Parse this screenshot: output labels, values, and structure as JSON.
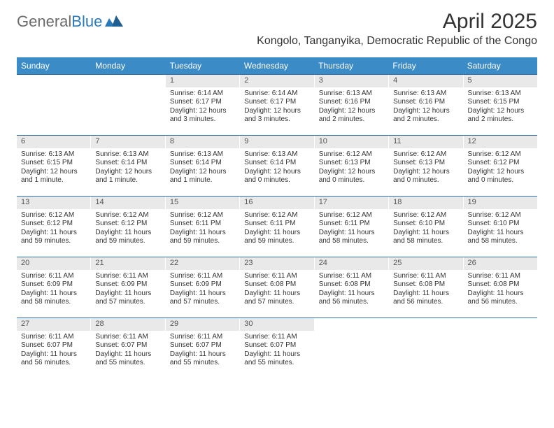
{
  "brand": {
    "part1": "General",
    "part2": "Blue"
  },
  "colors": {
    "header_bg": "#3b8bc7",
    "week_border": "#2f6fa3",
    "daynum_bg": "#e9e9e9",
    "text": "#333333",
    "brand_gray": "#6b6b6b",
    "brand_blue": "#2a7ab9"
  },
  "title": "April 2025",
  "location": "Kongolo, Tanganyika, Democratic Republic of the Congo",
  "dow": [
    "Sunday",
    "Monday",
    "Tuesday",
    "Wednesday",
    "Thursday",
    "Friday",
    "Saturday"
  ],
  "weeks": [
    [
      {
        "n": "",
        "sr": "",
        "ss": "",
        "dl": ""
      },
      {
        "n": "",
        "sr": "",
        "ss": "",
        "dl": ""
      },
      {
        "n": "1",
        "sr": "Sunrise: 6:14 AM",
        "ss": "Sunset: 6:17 PM",
        "dl": "Daylight: 12 hours and 3 minutes."
      },
      {
        "n": "2",
        "sr": "Sunrise: 6:14 AM",
        "ss": "Sunset: 6:17 PM",
        "dl": "Daylight: 12 hours and 3 minutes."
      },
      {
        "n": "3",
        "sr": "Sunrise: 6:13 AM",
        "ss": "Sunset: 6:16 PM",
        "dl": "Daylight: 12 hours and 2 minutes."
      },
      {
        "n": "4",
        "sr": "Sunrise: 6:13 AM",
        "ss": "Sunset: 6:16 PM",
        "dl": "Daylight: 12 hours and 2 minutes."
      },
      {
        "n": "5",
        "sr": "Sunrise: 6:13 AM",
        "ss": "Sunset: 6:15 PM",
        "dl": "Daylight: 12 hours and 2 minutes."
      }
    ],
    [
      {
        "n": "6",
        "sr": "Sunrise: 6:13 AM",
        "ss": "Sunset: 6:15 PM",
        "dl": "Daylight: 12 hours and 1 minute."
      },
      {
        "n": "7",
        "sr": "Sunrise: 6:13 AM",
        "ss": "Sunset: 6:14 PM",
        "dl": "Daylight: 12 hours and 1 minute."
      },
      {
        "n": "8",
        "sr": "Sunrise: 6:13 AM",
        "ss": "Sunset: 6:14 PM",
        "dl": "Daylight: 12 hours and 1 minute."
      },
      {
        "n": "9",
        "sr": "Sunrise: 6:13 AM",
        "ss": "Sunset: 6:14 PM",
        "dl": "Daylight: 12 hours and 0 minutes."
      },
      {
        "n": "10",
        "sr": "Sunrise: 6:12 AM",
        "ss": "Sunset: 6:13 PM",
        "dl": "Daylight: 12 hours and 0 minutes."
      },
      {
        "n": "11",
        "sr": "Sunrise: 6:12 AM",
        "ss": "Sunset: 6:13 PM",
        "dl": "Daylight: 12 hours and 0 minutes."
      },
      {
        "n": "12",
        "sr": "Sunrise: 6:12 AM",
        "ss": "Sunset: 6:12 PM",
        "dl": "Daylight: 12 hours and 0 minutes."
      }
    ],
    [
      {
        "n": "13",
        "sr": "Sunrise: 6:12 AM",
        "ss": "Sunset: 6:12 PM",
        "dl": "Daylight: 11 hours and 59 minutes."
      },
      {
        "n": "14",
        "sr": "Sunrise: 6:12 AM",
        "ss": "Sunset: 6:12 PM",
        "dl": "Daylight: 11 hours and 59 minutes."
      },
      {
        "n": "15",
        "sr": "Sunrise: 6:12 AM",
        "ss": "Sunset: 6:11 PM",
        "dl": "Daylight: 11 hours and 59 minutes."
      },
      {
        "n": "16",
        "sr": "Sunrise: 6:12 AM",
        "ss": "Sunset: 6:11 PM",
        "dl": "Daylight: 11 hours and 59 minutes."
      },
      {
        "n": "17",
        "sr": "Sunrise: 6:12 AM",
        "ss": "Sunset: 6:11 PM",
        "dl": "Daylight: 11 hours and 58 minutes."
      },
      {
        "n": "18",
        "sr": "Sunrise: 6:12 AM",
        "ss": "Sunset: 6:10 PM",
        "dl": "Daylight: 11 hours and 58 minutes."
      },
      {
        "n": "19",
        "sr": "Sunrise: 6:12 AM",
        "ss": "Sunset: 6:10 PM",
        "dl": "Daylight: 11 hours and 58 minutes."
      }
    ],
    [
      {
        "n": "20",
        "sr": "Sunrise: 6:11 AM",
        "ss": "Sunset: 6:09 PM",
        "dl": "Daylight: 11 hours and 58 minutes."
      },
      {
        "n": "21",
        "sr": "Sunrise: 6:11 AM",
        "ss": "Sunset: 6:09 PM",
        "dl": "Daylight: 11 hours and 57 minutes."
      },
      {
        "n": "22",
        "sr": "Sunrise: 6:11 AM",
        "ss": "Sunset: 6:09 PM",
        "dl": "Daylight: 11 hours and 57 minutes."
      },
      {
        "n": "23",
        "sr": "Sunrise: 6:11 AM",
        "ss": "Sunset: 6:08 PM",
        "dl": "Daylight: 11 hours and 57 minutes."
      },
      {
        "n": "24",
        "sr": "Sunrise: 6:11 AM",
        "ss": "Sunset: 6:08 PM",
        "dl": "Daylight: 11 hours and 56 minutes."
      },
      {
        "n": "25",
        "sr": "Sunrise: 6:11 AM",
        "ss": "Sunset: 6:08 PM",
        "dl": "Daylight: 11 hours and 56 minutes."
      },
      {
        "n": "26",
        "sr": "Sunrise: 6:11 AM",
        "ss": "Sunset: 6:08 PM",
        "dl": "Daylight: 11 hours and 56 minutes."
      }
    ],
    [
      {
        "n": "27",
        "sr": "Sunrise: 6:11 AM",
        "ss": "Sunset: 6:07 PM",
        "dl": "Daylight: 11 hours and 56 minutes."
      },
      {
        "n": "28",
        "sr": "Sunrise: 6:11 AM",
        "ss": "Sunset: 6:07 PM",
        "dl": "Daylight: 11 hours and 55 minutes."
      },
      {
        "n": "29",
        "sr": "Sunrise: 6:11 AM",
        "ss": "Sunset: 6:07 PM",
        "dl": "Daylight: 11 hours and 55 minutes."
      },
      {
        "n": "30",
        "sr": "Sunrise: 6:11 AM",
        "ss": "Sunset: 6:07 PM",
        "dl": "Daylight: 11 hours and 55 minutes."
      },
      {
        "n": "",
        "sr": "",
        "ss": "",
        "dl": ""
      },
      {
        "n": "",
        "sr": "",
        "ss": "",
        "dl": ""
      },
      {
        "n": "",
        "sr": "",
        "ss": "",
        "dl": ""
      }
    ]
  ]
}
